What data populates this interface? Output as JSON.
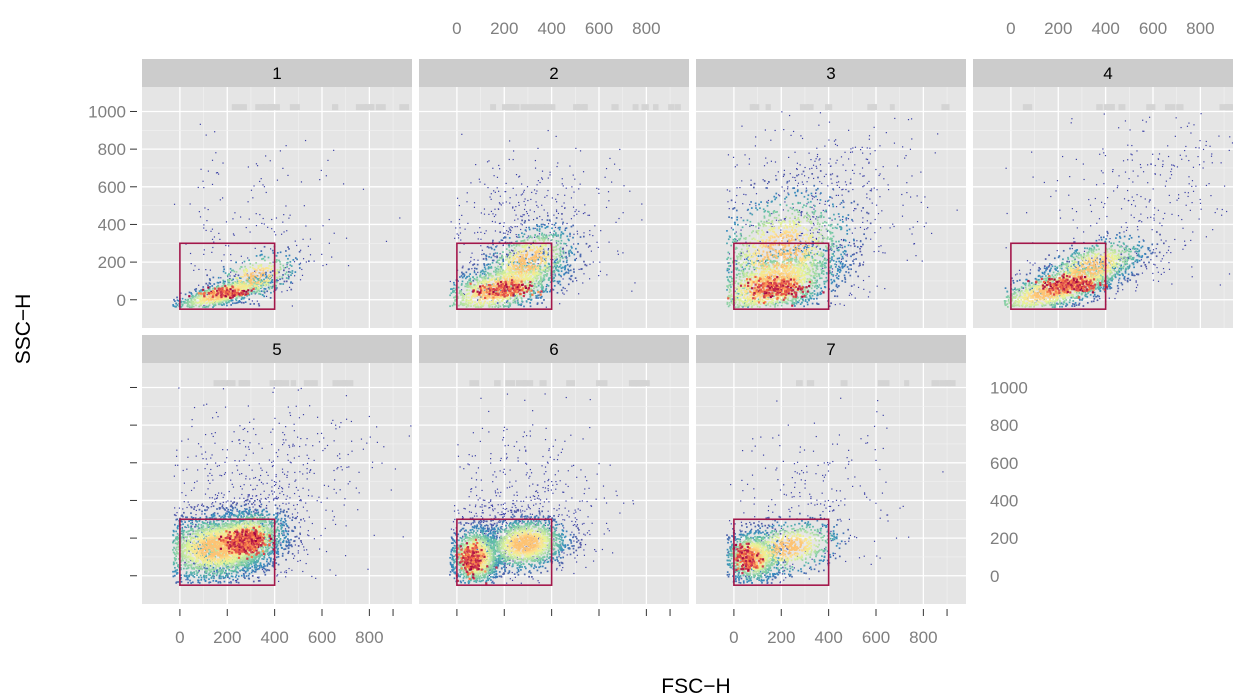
{
  "chart_data": {
    "type": "scatter",
    "subtype": "faceted density scatter with rectangular gate",
    "xlabel": "FSC−H",
    "ylabel": "SSC−H",
    "xlim": [
      -160,
      980
    ],
    "ylim": [
      -150,
      1130
    ],
    "x_ticks": [
      0,
      200,
      400,
      600,
      800
    ],
    "x_tick_labels": [
      "0",
      "200",
      "400",
      "600",
      "800"
    ],
    "y_ticks": [
      0,
      200,
      400,
      600,
      800,
      1000
    ],
    "y_tick_labels": [
      "0",
      "200",
      "400",
      "600",
      "800",
      "1000"
    ],
    "grid": true,
    "layout": {
      "rows": 2,
      "cols": 4
    },
    "colors": {
      "panel_bg": "#e5e5e5",
      "strip_bg": "#cccccc",
      "gridline": "#ffffff",
      "gate": "#a3174a",
      "sparse_points": "#3a3fa6",
      "density_low": "#5e4fa2",
      "density_mid": "#66c2a5",
      "density_high": "#9e0142",
      "axis_text": "#7f7f7f"
    },
    "gate": {
      "x": [
        0,
        400
      ],
      "y": [
        -50,
        300
      ]
    },
    "panels": [
      {
        "label": "1",
        "cores": [
          {
            "x": 180,
            "y": 30,
            "sx": 110,
            "sy": 32,
            "n": 900,
            "rot": 0.35
          },
          {
            "x": 320,
            "y": 120,
            "sx": 90,
            "sy": 60,
            "n": 350,
            "rot": 0.3
          }
        ],
        "scatter": [
          {
            "x": 400,
            "y": 420,
            "sx": 200,
            "sy": 220,
            "n": 110
          },
          {
            "x": 120,
            "y": 480,
            "sx": 50,
            "sy": 260,
            "n": 45
          }
        ],
        "hot": {
          "x": 190,
          "y": 35,
          "sx": 50,
          "sy": 14,
          "n": 120
        }
      },
      {
        "label": "2",
        "cores": [
          {
            "x": 180,
            "y": 60,
            "sx": 140,
            "sy": 70,
            "n": 1300,
            "rot": 0.35
          },
          {
            "x": 300,
            "y": 200,
            "sx": 100,
            "sy": 90,
            "n": 800,
            "rot": 0.4
          }
        ],
        "scatter": [
          {
            "x": 400,
            "y": 450,
            "sx": 180,
            "sy": 200,
            "n": 220
          },
          {
            "x": 200,
            "y": 380,
            "sx": 120,
            "sy": 150,
            "n": 160
          }
        ],
        "hot": {
          "x": 200,
          "y": 50,
          "sx": 55,
          "sy": 22,
          "n": 160
        }
      },
      {
        "label": "3",
        "cores": [
          {
            "x": 160,
            "y": 80,
            "sx": 150,
            "sy": 90,
            "n": 1500,
            "rot": 0.3
          },
          {
            "x": 200,
            "y": 250,
            "sx": 150,
            "sy": 160,
            "n": 1300,
            "rot": 0.3
          }
        ],
        "scatter": [
          {
            "x": 300,
            "y": 500,
            "sx": 180,
            "sy": 220,
            "n": 350
          },
          {
            "x": 550,
            "y": 600,
            "sx": 200,
            "sy": 250,
            "n": 120
          }
        ],
        "hot": {
          "x": 180,
          "y": 55,
          "sx": 60,
          "sy": 28,
          "n": 220
        }
      },
      {
        "label": "4",
        "cores": [
          {
            "x": 180,
            "y": 50,
            "sx": 150,
            "sy": 55,
            "n": 1300,
            "rot": 0.35
          },
          {
            "x": 330,
            "y": 160,
            "sx": 120,
            "sy": 70,
            "n": 900,
            "rot": 0.45
          }
        ],
        "scatter": [
          {
            "x": 500,
            "y": 420,
            "sx": 220,
            "sy": 220,
            "n": 220
          },
          {
            "x": 700,
            "y": 780,
            "sx": 150,
            "sy": 150,
            "n": 90
          }
        ],
        "hot": {
          "x": 250,
          "y": 80,
          "sx": 60,
          "sy": 22,
          "n": 240
        }
      },
      {
        "label": "5",
        "cores": [
          {
            "x": 160,
            "y": 150,
            "sx": 130,
            "sy": 90,
            "n": 2300,
            "rot": 0.1
          },
          {
            "x": 260,
            "y": 190,
            "sx": 100,
            "sy": 80,
            "n": 1500,
            "rot": 0.2
          }
        ],
        "scatter": [
          {
            "x": 250,
            "y": 450,
            "sx": 200,
            "sy": 200,
            "n": 350
          },
          {
            "x": 520,
            "y": 600,
            "sx": 180,
            "sy": 200,
            "n": 160
          }
        ],
        "hot": {
          "x": 280,
          "y": 180,
          "sx": 40,
          "sy": 32,
          "n": 450
        }
      },
      {
        "label": "6",
        "cores": [
          {
            "x": 80,
            "y": 100,
            "sx": 55,
            "sy": 80,
            "n": 1300,
            "rot": 0.0
          },
          {
            "x": 290,
            "y": 170,
            "sx": 90,
            "sy": 70,
            "n": 1400,
            "rot": 0.1
          }
        ],
        "scatter": [
          {
            "x": 300,
            "y": 450,
            "sx": 180,
            "sy": 200,
            "n": 280
          },
          {
            "x": 250,
            "y": 250,
            "sx": 150,
            "sy": 110,
            "n": 350
          }
        ],
        "hot": {
          "x": 60,
          "y": 80,
          "sx": 25,
          "sy": 40,
          "n": 200
        }
      },
      {
        "label": "7",
        "cores": [
          {
            "x": 80,
            "y": 100,
            "sx": 60,
            "sy": 70,
            "n": 1000,
            "rot": 0.0
          },
          {
            "x": 230,
            "y": 150,
            "sx": 110,
            "sy": 70,
            "n": 700,
            "rot": 0.2
          }
        ],
        "scatter": [
          {
            "x": 300,
            "y": 350,
            "sx": 180,
            "sy": 200,
            "n": 180
          },
          {
            "x": 500,
            "y": 600,
            "sx": 200,
            "sy": 220,
            "n": 40
          }
        ],
        "hot": {
          "x": 55,
          "y": 90,
          "sx": 25,
          "sy": 35,
          "n": 160
        }
      }
    ]
  }
}
